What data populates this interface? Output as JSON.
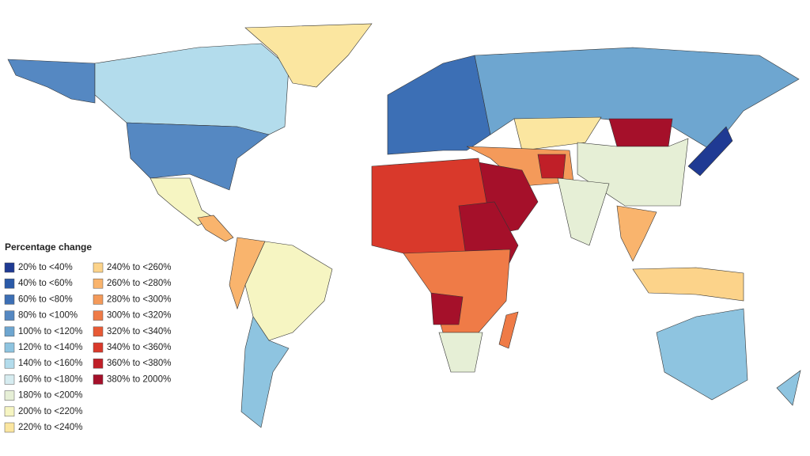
{
  "legend": {
    "title": "Percentage change",
    "items": [
      {
        "label": "20% to <40%",
        "color": "#1f3a93"
      },
      {
        "label": "40% to <60%",
        "color": "#2b5aa8"
      },
      {
        "label": "60% to <80%",
        "color": "#3c6fb5"
      },
      {
        "label": "80% to <100%",
        "color": "#5588c2"
      },
      {
        "label": "100% to <120%",
        "color": "#6ea6d0"
      },
      {
        "label": "120% to <140%",
        "color": "#8ec4e0"
      },
      {
        "label": "140% to <160%",
        "color": "#b3dcec"
      },
      {
        "label": "160% to <180%",
        "color": "#d6ecf0"
      },
      {
        "label": "180% to <200%",
        "color": "#e6efd6"
      },
      {
        "label": "200% to <220%",
        "color": "#f6f5c2"
      },
      {
        "label": "220% to <240%",
        "color": "#fbe6a0"
      },
      {
        "label": "240% to <260%",
        "color": "#fcd38a"
      },
      {
        "label": "260% to <280%",
        "color": "#f9b46d"
      },
      {
        "label": "280% to <300%",
        "color": "#f49a5a"
      },
      {
        "label": "300% to <320%",
        "color": "#ef7b47"
      },
      {
        "label": "320% to <340%",
        "color": "#e85a35"
      },
      {
        "label": "340% to <360%",
        "color": "#d9392b"
      },
      {
        "label": "360% to <380%",
        "color": "#c01f28"
      },
      {
        "label": "380% to 2000%",
        "color": "#a5102a"
      }
    ]
  }
}
